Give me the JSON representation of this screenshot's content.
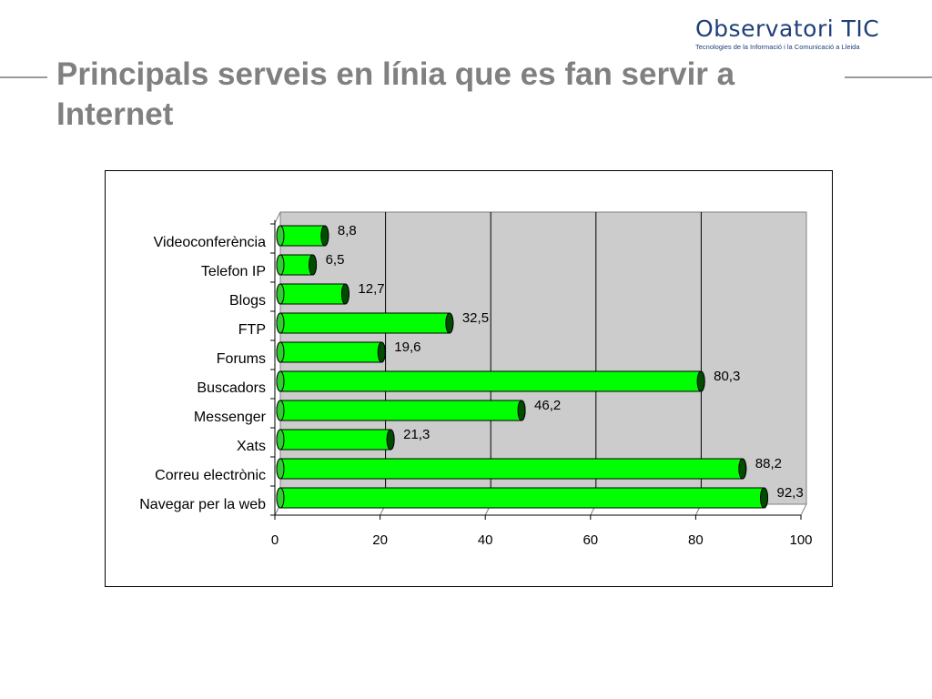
{
  "header": {
    "title": "Principals serveis en línia que es fan servir a Internet",
    "logo_name": "Observatori TIC",
    "logo_subtitle": "Tecnologies de la Informació i la Comunicació a Lleida"
  },
  "colors": {
    "bar_fill": "#00ff00",
    "bar_edge": "#004d00",
    "plot_wall": "#cccccc",
    "title_gray": "#808080",
    "logo_blue": "#1e3f78"
  },
  "chart_data": {
    "type": "bar",
    "orientation": "horizontal",
    "style": "3d-cylinder",
    "title": "",
    "xlabel": "",
    "ylabel": "",
    "categories": [
      "Videoconferència",
      "Telefon IP",
      "Blogs",
      "FTP",
      "Forums",
      "Buscadors",
      "Messenger",
      "Xats",
      "Correu electrònic",
      "Navegar per la web"
    ],
    "values": [
      8.8,
      6.5,
      12.7,
      32.5,
      19.6,
      80.3,
      46.2,
      21.3,
      88.2,
      92.3
    ],
    "value_labels": [
      "8,8",
      "6,5",
      "12,7",
      "32,5",
      "19,6",
      "80,3",
      "46,2",
      "21,3",
      "88,2",
      "92,3"
    ],
    "xlim": [
      0,
      100
    ],
    "xticks": [
      0,
      20,
      40,
      60,
      80,
      100
    ],
    "xtick_labels": [
      "0",
      "20",
      "40",
      "60",
      "80",
      "100"
    ],
    "grid": true,
    "legend": "none"
  }
}
